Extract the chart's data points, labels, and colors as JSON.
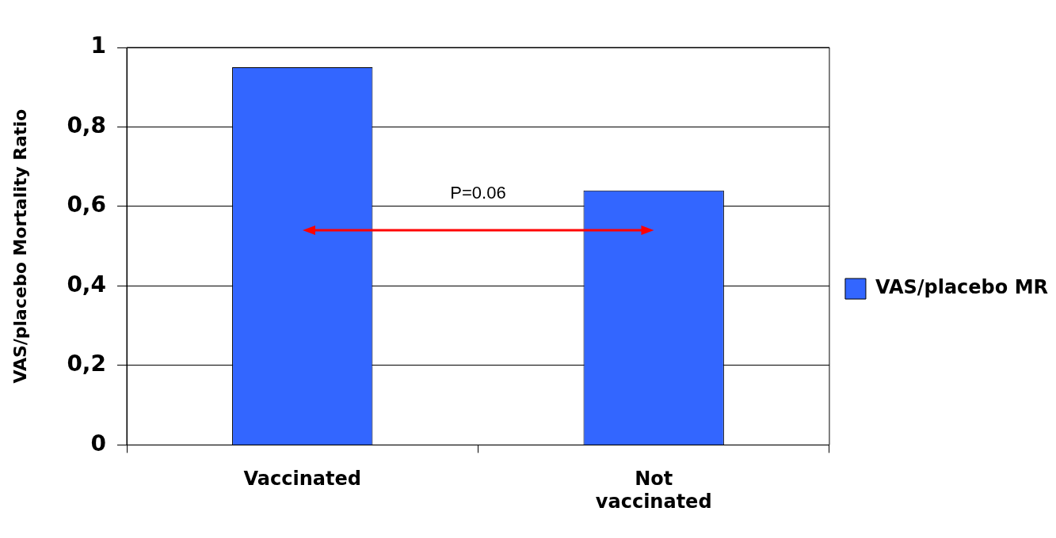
{
  "chart_data": {
    "type": "bar",
    "ylabel": "VAS/placebo Mortality Ratio",
    "categories": [
      "Vaccinated",
      "Not vaccinated"
    ],
    "series": [
      {
        "name": "VAS/placebo MR",
        "color": "#3366ff",
        "values": [
          0.95,
          0.64
        ]
      }
    ],
    "ylim": [
      0,
      1
    ],
    "yticks": [
      {
        "value": 0,
        "label": "0"
      },
      {
        "value": 0.2,
        "label": "0,2"
      },
      {
        "value": 0.4,
        "label": "0,4"
      },
      {
        "value": 0.6,
        "label": "0,6"
      },
      {
        "value": 0.8,
        "label": "0,8"
      },
      {
        "value": 1,
        "label": "1"
      }
    ],
    "grid": "y",
    "legend": "right",
    "annotations": [
      "P=0.06"
    ]
  }
}
